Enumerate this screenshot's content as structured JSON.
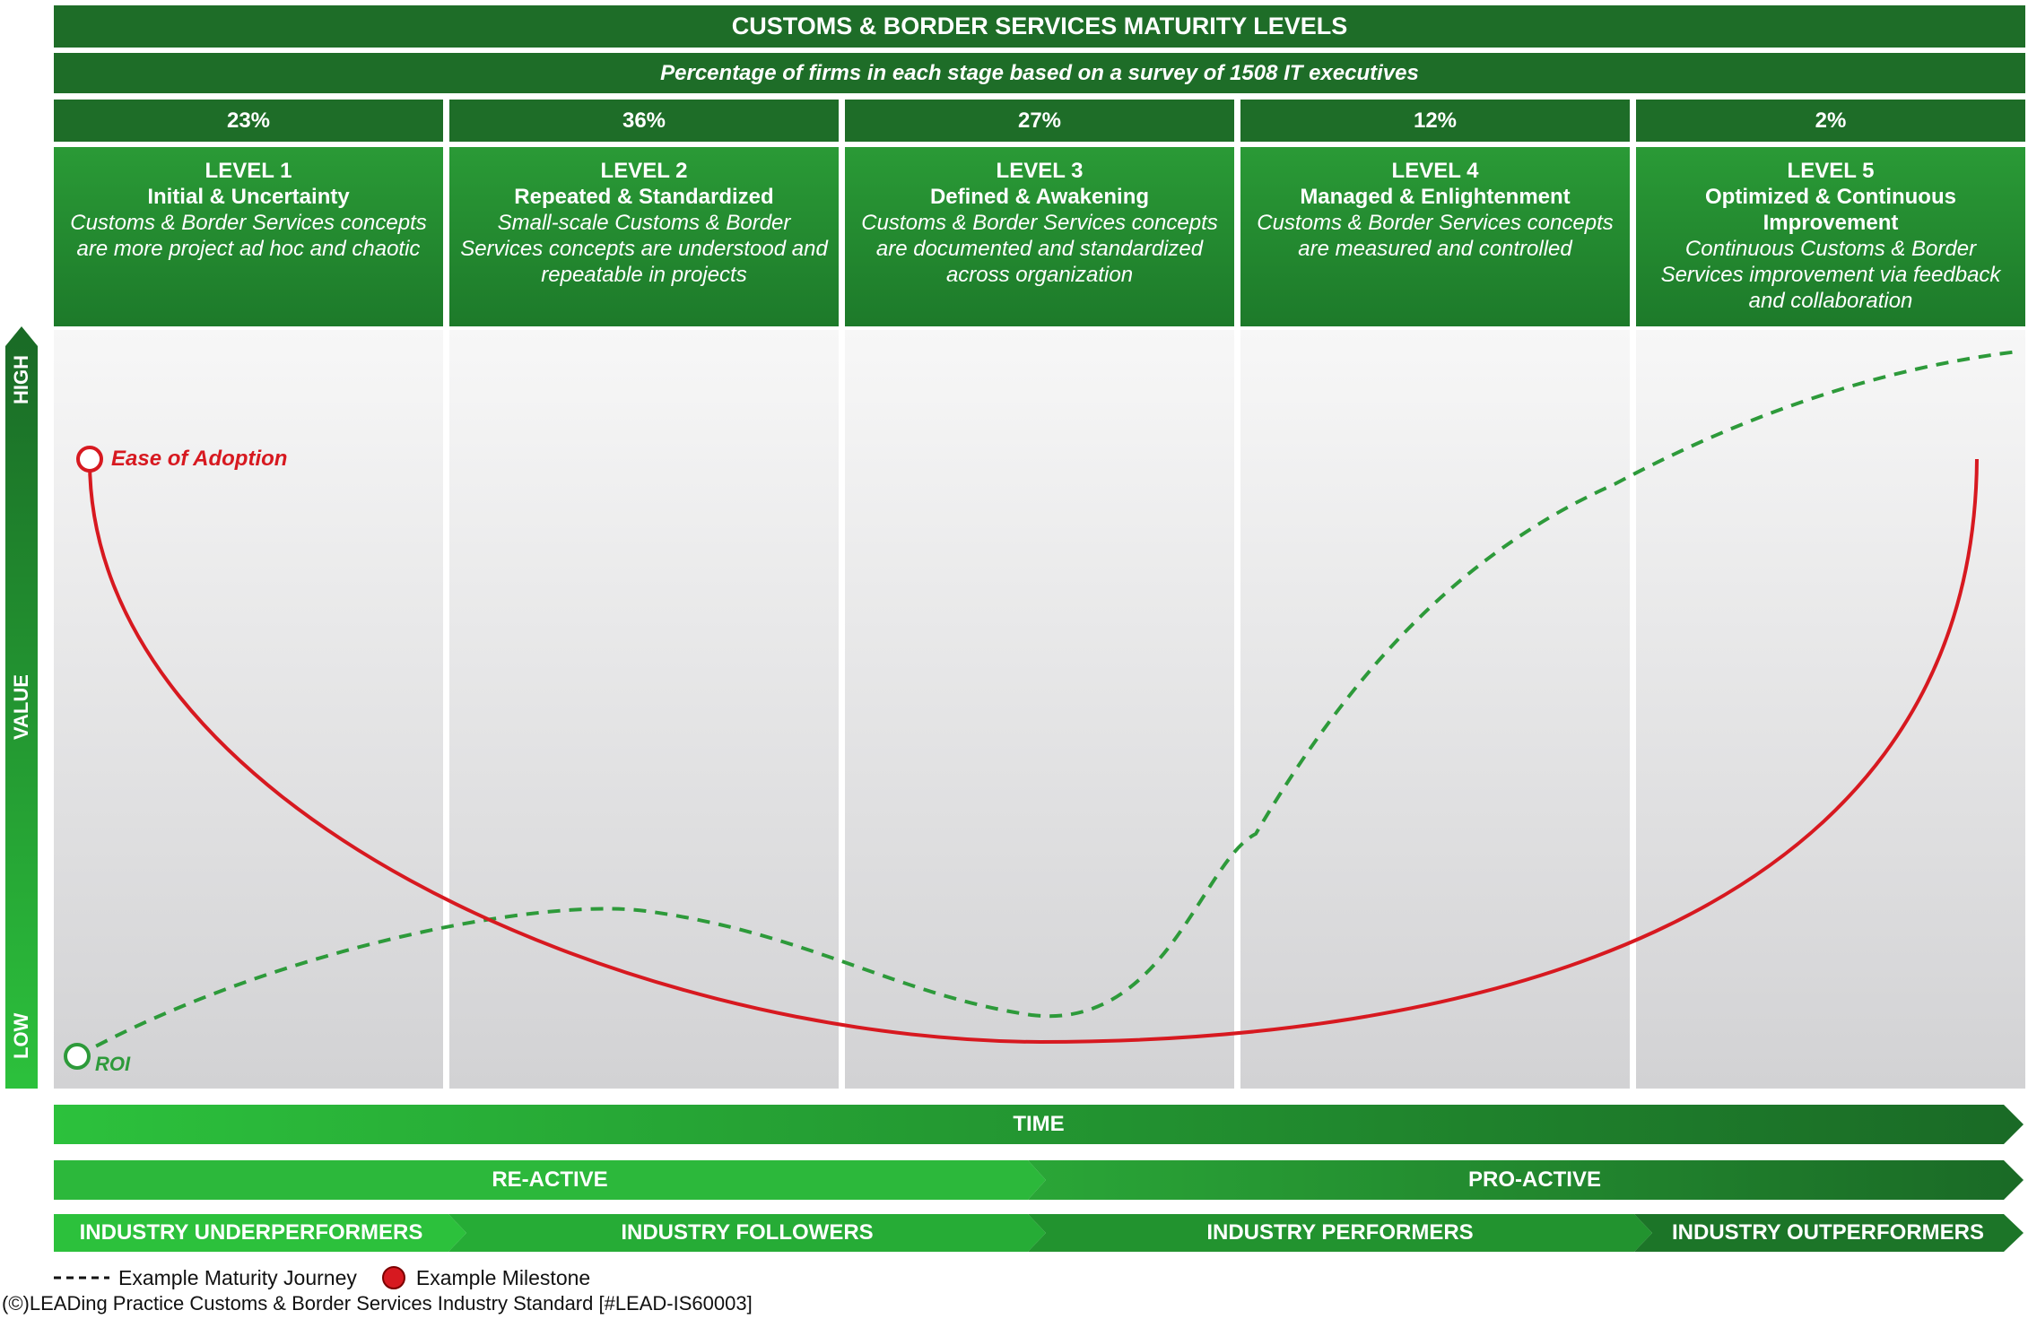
{
  "header": {
    "title": "CUSTOMS & BORDER SERVICES MATURITY LEVELS",
    "subtitle": "Percentage of firms in each stage based on a survey of 1508 IT executives"
  },
  "levels": [
    {
      "percent": "23%",
      "name": "LEVEL 1",
      "title": "Initial & Uncertainty",
      "desc": "Customs & Border Services concepts are more project ad hoc and chaotic"
    },
    {
      "percent": "36%",
      "name": "LEVEL 2",
      "title": "Repeated & Standardized",
      "desc": "Small-scale Customs & Border Services concepts are understood and repeatable in projects"
    },
    {
      "percent": "27%",
      "name": "LEVEL 3",
      "title": "Defined & Awakening",
      "desc": "Customs & Border Services concepts are documented and standardized across organization"
    },
    {
      "percent": "12%",
      "name": "LEVEL 4",
      "title": "Managed & Enlightenment",
      "desc": "Customs & Border Services concepts are measured and controlled"
    },
    {
      "percent": "2%",
      "name": "LEVEL 5",
      "title": "Optimized & Continuous Improvement",
      "desc": "Continuous Customs & Border Services improvement via feedback and collaboration"
    }
  ],
  "yaxis": {
    "high": "HIGH",
    "value": "VALUE",
    "low": "LOW"
  },
  "curves": {
    "ease": "Ease of Adoption",
    "roi": "ROI"
  },
  "colors": {
    "dark_green": "#1e6d28",
    "green": "#2a9a36",
    "red": "#d71920",
    "dashed": "#2d9a3a"
  },
  "ribbons": {
    "time": "TIME",
    "reactive": "RE-ACTIVE",
    "proactive": "PRO-ACTIVE",
    "segments": [
      "INDUSTRY UNDERPERFORMERS",
      "INDUSTRY FOLLOWERS",
      "INDUSTRY PERFORMERS",
      "INDUSTRY OUTPERFORMERS"
    ]
  },
  "legend": {
    "journey": "Example Maturity Journey",
    "milestone": "Example Milestone"
  },
  "footer": "Ding Practice Customs & Border Services Industry Standard [#LEAD-IS60003]",
  "footer_logo": "(©)LEA"
}
